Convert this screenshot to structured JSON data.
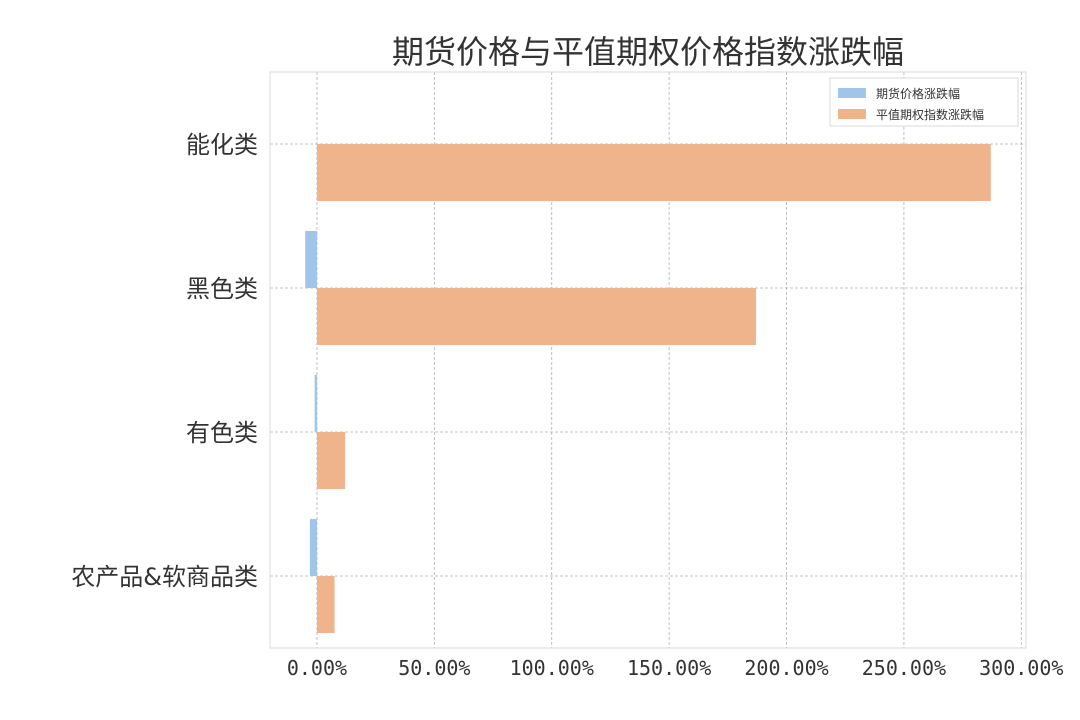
{
  "chart_data": {
    "type": "bar",
    "orientation": "horizontal",
    "title": "期货价格与平值期权价格指数涨跌幅",
    "categories": [
      "能化类",
      "黑色类",
      "有色类",
      "农产品&软商品类"
    ],
    "series": [
      {
        "name": "期货价格涨跌幅",
        "color": "#a1c4ea",
        "values": [
          0.0,
          -5.0,
          -1.0,
          -3.0
        ]
      },
      {
        "name": "平值期权指数涨跌幅",
        "color": "#f0b48c",
        "values": [
          287.0,
          187.0,
          12.0,
          7.5
        ]
      }
    ],
    "xticks": [
      "0.00%",
      "50.00%",
      "100.00%",
      "150.00%",
      "200.00%",
      "250.00%",
      "300.00%"
    ],
    "xtick_values": [
      0,
      50,
      100,
      150,
      200,
      250,
      300
    ],
    "xlim": [
      -20,
      302
    ],
    "xlabel": "",
    "ylabel": "",
    "grid": true,
    "legend_position": "top-right"
  }
}
